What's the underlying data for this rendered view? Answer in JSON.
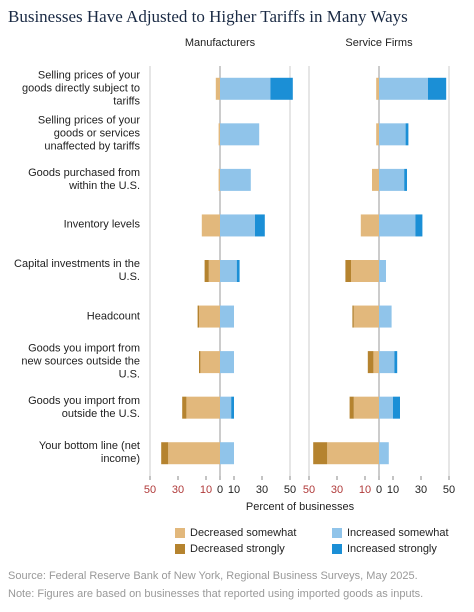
{
  "chart_data": {
    "type": "bar",
    "orientation": "horizontal",
    "stacked": true,
    "title": "Businesses Have Adjusted to Higher Tariffs in Many Ways",
    "xlabel": "Percent of businesses",
    "categories": [
      "Selling prices of your goods directly subject to tariffs",
      "Selling prices of your goods or services unaffected by tariffs",
      "Goods purchased from within the U.S.",
      "Inventory levels",
      "Capital investments in the U.S.",
      "Headcount",
      "Goods you import from new sources outside the U.S.",
      "Goods you import from outside the U.S.",
      "Your bottom line (net income)"
    ],
    "xlim": [
      -50,
      50
    ],
    "xticks": [
      {
        "value": -50,
        "label": "50"
      },
      {
        "value": -30,
        "label": "30"
      },
      {
        "value": -10,
        "label": "10"
      },
      0,
      10,
      30,
      50
    ],
    "series": [
      {
        "name": "Decreased somewhat",
        "color": "#e2b87c"
      },
      {
        "name": "Decreased strongly",
        "color": "#b5832f"
      },
      {
        "name": "Increased somewhat",
        "color": "#90c4ea"
      },
      {
        "name": "Increased strongly",
        "color": "#1b8fd6"
      }
    ],
    "panels": [
      {
        "title": "Manufacturers",
        "series": [
          {
            "values": [
              -3,
              -1,
              -1,
              -13,
              -8,
              -15,
              -14,
              -24,
              -37
            ]
          },
          {
            "values": [
              0,
              0,
              0,
              0,
              -3,
              -1,
              -1,
              -3,
              -5
            ]
          },
          {
            "values": [
              36,
              28,
              22,
              25,
              12,
              10,
              10,
              8,
              10
            ]
          },
          {
            "values": [
              16,
              0,
              0,
              7,
              2,
              0,
              0,
              2,
              0
            ]
          }
        ]
      },
      {
        "title": "Service Firms",
        "series": [
          {
            "values": [
              -2,
              -2,
              -5,
              -13,
              -20,
              -18,
              -4,
              -18,
              -37
            ]
          },
          {
            "values": [
              0,
              0,
              0,
              0,
              -4,
              -1,
              -4,
              -3,
              -10
            ]
          },
          {
            "values": [
              35,
              19,
              18,
              26,
              5,
              9,
              11,
              10,
              7
            ]
          },
          {
            "values": [
              13,
              2,
              2,
              5,
              0,
              0,
              2,
              5,
              0
            ]
          }
        ]
      }
    ],
    "source": "Source: Federal Reserve Bank of New York, Regional Business Surveys, May 2025.",
    "note": "Note: Figures are based on businesses that reported using imported goods as inputs."
  }
}
